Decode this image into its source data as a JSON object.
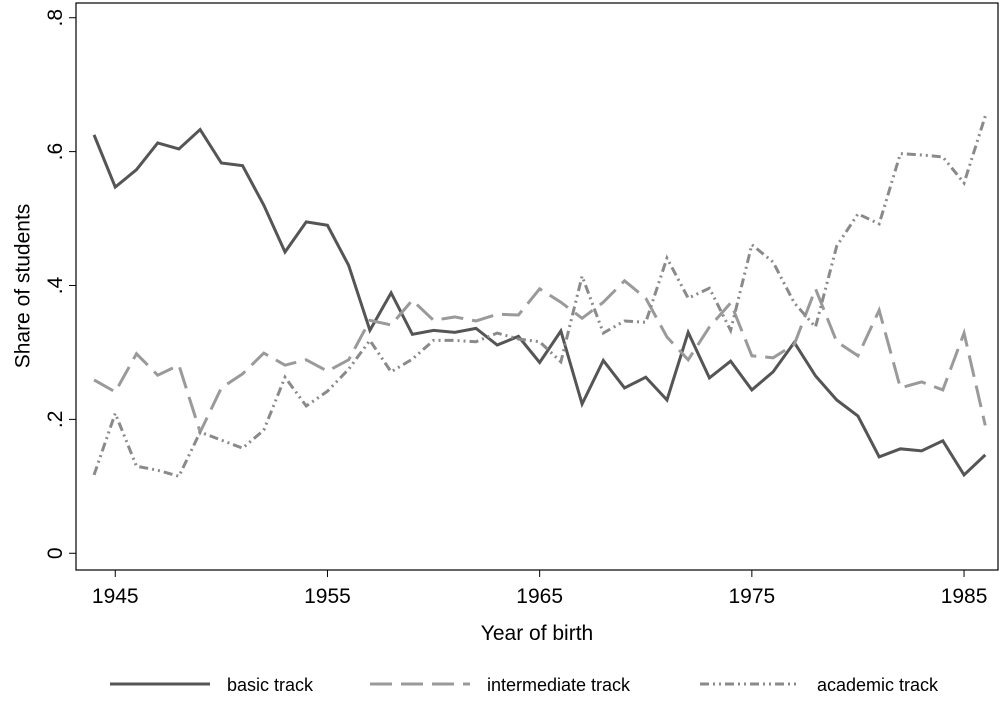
{
  "chart_data": {
    "type": "line",
    "x_label": "Year of birth",
    "y_label": "Share of students",
    "x": [
      1944,
      1945,
      1946,
      1947,
      1948,
      1949,
      1950,
      1951,
      1952,
      1953,
      1954,
      1955,
      1956,
      1957,
      1958,
      1959,
      1960,
      1961,
      1962,
      1963,
      1964,
      1965,
      1966,
      1967,
      1968,
      1969,
      1970,
      1971,
      1972,
      1973,
      1974,
      1975,
      1976,
      1977,
      1978,
      1979,
      1980,
      1981,
      1982,
      1983,
      1984,
      1985,
      1986
    ],
    "series": [
      {
        "name": "basic track",
        "color": "#555555",
        "dash": "solid",
        "values": [
          0.625,
          0.547,
          0.573,
          0.613,
          0.604,
          0.633,
          0.583,
          0.579,
          0.52,
          0.45,
          0.495,
          0.49,
          0.43,
          0.333,
          0.389,
          0.327,
          0.333,
          0.33,
          0.336,
          0.311,
          0.324,
          0.285,
          0.332,
          0.223,
          0.288,
          0.247,
          0.263,
          0.229,
          0.33,
          0.262,
          0.287,
          0.244,
          0.271,
          0.315,
          0.265,
          0.229,
          0.205,
          0.144,
          0.156,
          0.153,
          0.168,
          0.117,
          0.147
        ]
      },
      {
        "name": "intermediate track",
        "color": "#9a9a9a",
        "dash": "dashed",
        "values": [
          0.259,
          0.241,
          0.298,
          0.266,
          0.281,
          0.181,
          0.247,
          0.268,
          0.299,
          0.281,
          0.289,
          0.272,
          0.289,
          0.348,
          0.341,
          0.378,
          0.348,
          0.353,
          0.347,
          0.357,
          0.356,
          0.395,
          0.375,
          0.351,
          0.375,
          0.407,
          0.381,
          0.323,
          0.289,
          0.338,
          0.374,
          0.295,
          0.292,
          0.312,
          0.395,
          0.316,
          0.295,
          0.363,
          0.247,
          0.256,
          0.244,
          0.329,
          0.191
        ]
      },
      {
        "name": "academic track",
        "color": "#8a8a8a",
        "dash": "dashdot",
        "values": [
          0.117,
          0.209,
          0.13,
          0.124,
          0.115,
          0.181,
          0.169,
          0.157,
          0.184,
          0.263,
          0.22,
          0.242,
          0.275,
          0.318,
          0.271,
          0.29,
          0.318,
          0.318,
          0.316,
          0.329,
          0.32,
          0.316,
          0.286,
          0.414,
          0.329,
          0.347,
          0.345,
          0.441,
          0.381,
          0.396,
          0.333,
          0.461,
          0.435,
          0.374,
          0.338,
          0.459,
          0.507,
          0.492,
          0.597,
          0.595,
          0.592,
          0.553,
          0.653
        ]
      }
    ],
    "xlim": [
      1943.15,
      1986.6
    ],
    "xticks": [
      1945,
      1955,
      1965,
      1975,
      1985
    ],
    "ylim": [
      -0.025,
      0.822
    ],
    "yticks": [
      0,
      {
        "value": 0.2,
        "label": ".2"
      },
      {
        "value": 0.4,
        "label": ".4"
      },
      {
        "value": 0.6,
        "label": ".6"
      },
      {
        "value": 0.8,
        "label": ".8"
      }
    ],
    "legend": "bottom"
  }
}
